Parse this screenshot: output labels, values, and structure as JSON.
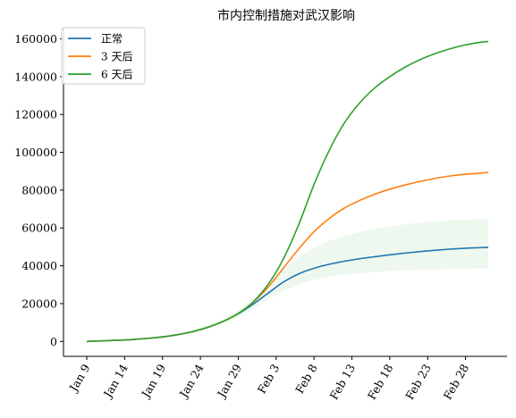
{
  "chart_data": {
    "type": "line",
    "title": "市内控制措施对武汉影响",
    "xlabel": "",
    "ylabel": "",
    "x_dates": [
      "Jan 9",
      "Jan 11",
      "Jan 13",
      "Jan 15",
      "Jan 17",
      "Jan 19",
      "Jan 21",
      "Jan 23",
      "Jan 25",
      "Jan 27",
      "Jan 29",
      "Jan 31",
      "Feb 2",
      "Feb 4",
      "Feb 6",
      "Feb 8",
      "Feb 10",
      "Feb 12",
      "Feb 14",
      "Feb 16",
      "Feb 18",
      "Feb 20",
      "Feb 22",
      "Feb 24",
      "Feb 26",
      "Feb 28",
      "Mar 1",
      "Mar 2"
    ],
    "x_ticks": [
      "Jan 9",
      "Jan 14",
      "Jan 19",
      "Jan 24",
      "Jan 29",
      "Feb 3",
      "Feb 8",
      "Feb 13",
      "Feb 18",
      "Feb 23",
      "Feb 28"
    ],
    "ylim": [
      -7900,
      165900
    ],
    "y_ticks": [
      0,
      20000,
      40000,
      60000,
      80000,
      100000,
      120000,
      140000,
      160000
    ],
    "grid": false,
    "legend_position": "top-left",
    "series": [
      {
        "name": "正常",
        "color": "#1f77b4",
        "values": [
          0,
          300,
          600,
          1000,
          1600,
          2400,
          3600,
          5200,
          7500,
          10600,
          14600,
          19800,
          25700,
          31500,
          35800,
          38700,
          40800,
          42400,
          43700,
          44800,
          45800,
          46700,
          47500,
          48200,
          48800,
          49300,
          49600,
          49800
        ]
      },
      {
        "name": "3 天后",
        "color": "#ff7f0e",
        "values": [
          0,
          300,
          600,
          1000,
          1600,
          2400,
          3600,
          5200,
          7500,
          10600,
          14800,
          20800,
          29000,
          39000,
          49000,
          58000,
          65000,
          70500,
          74500,
          77800,
          80500,
          82700,
          84600,
          86200,
          87500,
          88400,
          89000,
          89400
        ]
      },
      {
        "name": "6 天后",
        "color": "#2ca02c",
        "values": [
          0,
          300,
          600,
          1000,
          1600,
          2400,
          3600,
          5200,
          7500,
          10600,
          14800,
          21000,
          30500,
          44000,
          62000,
          83000,
          101000,
          115500,
          126000,
          134000,
          140000,
          145000,
          149000,
          152200,
          154800,
          156800,
          158200,
          158600
        ]
      }
    ],
    "band": {
      "color": "#2ca02c",
      "opacity": 0.08,
      "lower": [
        0,
        250,
        500,
        850,
        1400,
        2100,
        3100,
        4500,
        6500,
        9200,
        12800,
        17200,
        22200,
        26800,
        30200,
        32600,
        34200,
        35300,
        36100,
        36700,
        37200,
        37600,
        37900,
        38100,
        38300,
        38400,
        38500,
        38500
      ],
      "upper": [
        0,
        350,
        700,
        1200,
        1900,
        2800,
        4100,
        5900,
        8500,
        12000,
        16600,
        22600,
        30100,
        38200,
        44800,
        49700,
        53100,
        55800,
        57800,
        59500,
        60800,
        61900,
        62800,
        63500,
        64000,
        64400,
        64700,
        64800
      ]
    }
  }
}
